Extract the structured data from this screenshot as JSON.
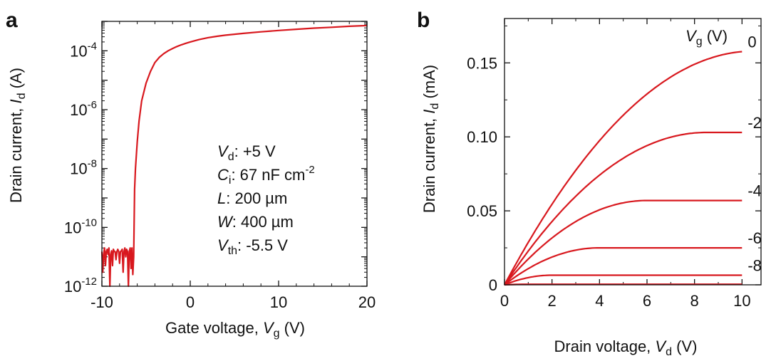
{
  "chart_data": [
    {
      "panel": "a",
      "type": "line",
      "title": "",
      "xlabel": "Gate voltage, V_g (V)",
      "xlabel_parts": {
        "pre": "Gate voltage, ",
        "sym": "V",
        "sub": "g",
        "post": " (V)"
      },
      "ylabel": "Drain current, I_d (A)",
      "ylabel_parts": {
        "pre": "Drain current, ",
        "sym": "I",
        "sub": "d",
        "post": " (A)"
      },
      "xlim": [
        -10,
        20
      ],
      "ylim": [
        1e-12,
        0.001
      ],
      "yscale": "log",
      "x_ticks": [
        -10,
        0,
        10,
        20
      ],
      "x_tick_labels": [
        "-10",
        "0",
        "10",
        "20"
      ],
      "y_ticks": [
        {
          "base": "10",
          "exp": "-12",
          "value": 1e-12
        },
        {
          "base": "10",
          "exp": "-10",
          "value": 1e-10
        },
        {
          "base": "10",
          "exp": "-8",
          "value": 1e-08
        },
        {
          "base": "10",
          "exp": "-6",
          "value": 1e-06
        },
        {
          "base": "10",
          "exp": "-4",
          "value": 0.0001
        }
      ],
      "series": [
        {
          "color": "#d8181e",
          "x": [
            -10.0,
            -9.9,
            -9.8,
            -9.7,
            -9.6,
            -9.5,
            -9.4,
            -9.3,
            -9.2,
            -9.1,
            -9.0,
            -8.9,
            -8.8,
            -8.7,
            -8.6,
            -8.5,
            -8.4,
            -8.3,
            -8.2,
            -8.1,
            -8.0,
            -7.9,
            -7.8,
            -7.7,
            -7.6,
            -7.5,
            -7.4,
            -7.3,
            -7.2,
            -7.1,
            -7.0,
            -6.9,
            -6.8,
            -6.7,
            -6.6,
            -6.5,
            -6.4,
            -6.3,
            -6.2,
            -6.0,
            -5.8,
            -5.5,
            -5.0,
            -4.5,
            -4.0,
            -3.5,
            -3.0,
            -2.5,
            -2.0,
            -1.5,
            -1.0,
            -0.5,
            0.0,
            1.0,
            2.0,
            3.0,
            4.0,
            6.0,
            8.0,
            10.0,
            12.0,
            14.0,
            16.0,
            18.0,
            20.0
          ],
          "y": [
            1.5e-11,
            3e-12,
            1.2e-11,
            2e-11,
            5e-12,
            1.5e-11,
            1.8e-11,
            1.2e-11,
            2e-11,
            1e-12,
            1.2e-11,
            1.6e-11,
            5e-12,
            1.8e-11,
            1.5e-11,
            1.5e-11,
            8e-12,
            1.5e-11,
            1.8e-11,
            1.5e-11,
            6e-12,
            1.5e-11,
            1.6e-11,
            1.8e-11,
            3e-12,
            1.5e-11,
            2e-11,
            1e-11,
            1.8e-11,
            1.5e-11,
            1e-12,
            1.5e-11,
            2e-11,
            4e-12,
            2e-11,
            2.5e-12,
            1e-11,
            2e-09,
            1e-08,
            8e-08,
            4e-07,
            2e-06,
            8e-06,
            2e-05,
            4e-05,
            6e-05,
            8e-05,
            0.0001,
            0.00012,
            0.00014,
            0.00016,
            0.00018,
            0.0002,
            0.00024,
            0.00028,
            0.00031,
            0.00034,
            0.00039,
            0.00044,
            0.00049,
            0.00054,
            0.00059,
            0.00063,
            0.00068,
            0.00072
          ]
        }
      ],
      "annotations": [
        {
          "sym": "V",
          "sub": "d",
          "rest": ": +5 V",
          "sup": ""
        },
        {
          "sym": "C",
          "sub": "i",
          "rest": ": 67 nF cm",
          "sup": "-2"
        },
        {
          "sym": "L",
          "sub": "",
          "rest": ": 200 µm",
          "sup": ""
        },
        {
          "sym": "W",
          "sub": "",
          "rest": ": 400 µm",
          "sup": ""
        },
        {
          "sym": "V",
          "sub": "th",
          "rest": ": -5.5 V",
          "sup": ""
        }
      ]
    },
    {
      "panel": "b",
      "type": "line",
      "title": "",
      "xlabel": "Drain voltage, V_d (V)",
      "xlabel_parts": {
        "pre": "Drain voltage, ",
        "sym": "V",
        "sub": "d",
        "post": " (V)"
      },
      "ylabel": "Drain current, I_d (mA)",
      "ylabel_parts": {
        "pre": "Drain current, ",
        "sym": "I",
        "sub": "d",
        "post": " (mA)"
      },
      "xlim": [
        0,
        10.8
      ],
      "ylim": [
        0,
        0.18
      ],
      "x_ticks": [
        0,
        2,
        4,
        6,
        8,
        10
      ],
      "x_tick_labels": [
        "0",
        "2",
        "4",
        "6",
        "8",
        "10"
      ],
      "y_ticks": [
        0,
        0.05,
        0.1,
        0.15
      ],
      "y_tick_labels": [
        "0",
        "0.05",
        "0.10",
        "0.15"
      ],
      "legend_title": {
        "sym": "V",
        "sub": "g",
        "post": " (V)"
      },
      "series": [
        {
          "name": "0",
          "color": "#d8181e",
          "sat_current": 0.158,
          "sat_voltage": 10.5
        },
        {
          "name": "-2",
          "color": "#d8181e",
          "sat_current": 0.103,
          "sat_voltage": 8.5
        },
        {
          "name": "-4",
          "color": "#d8181e",
          "sat_current": 0.057,
          "sat_voltage": 6.0
        },
        {
          "name": "-6",
          "color": "#d8181e",
          "sat_current": 0.025,
          "sat_voltage": 4.0
        },
        {
          "name": "-8",
          "color": "#d8181e",
          "sat_current": 0.0065,
          "sat_voltage": 2.0
        },
        {
          "name": "",
          "color": "#d8181e",
          "sat_current": 0.0004,
          "sat_voltage": 1.0
        }
      ]
    }
  ],
  "panel_labels": {
    "a": "a",
    "b": "b"
  }
}
